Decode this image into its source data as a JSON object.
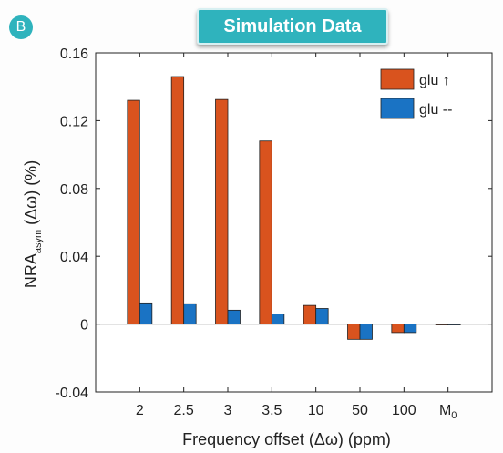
{
  "panel": {
    "label": "B"
  },
  "banner": {
    "text": "Simulation Data"
  },
  "chart_data": {
    "type": "bar",
    "categories": [
      "2",
      "2.5",
      "3",
      "3.5",
      "10",
      "50",
      "100",
      "M0"
    ],
    "series": [
      {
        "name": "glu ↑",
        "color": "#d9531e",
        "values": [
          0.132,
          0.146,
          0.1325,
          0.108,
          0.011,
          -0.009,
          -0.005,
          -0.0005
        ]
      },
      {
        "name": "glu --",
        "color": "#1a73c4",
        "values": [
          0.0125,
          0.012,
          0.0082,
          0.006,
          0.0092,
          -0.009,
          -0.005,
          -0.0005
        ]
      }
    ],
    "xlabel": "Frequency offset (Δω) (ppm)",
    "ylabel": {
      "main": "NRA",
      "sub": "asym",
      "rest": " (Δω) (%)"
    },
    "ylim": [
      -0.04,
      0.16
    ],
    "yticks": [
      "-0.04",
      "0",
      "0.04",
      "0.08",
      "0.12",
      "0.16"
    ],
    "legend_position": "top-right",
    "grid": false
  }
}
